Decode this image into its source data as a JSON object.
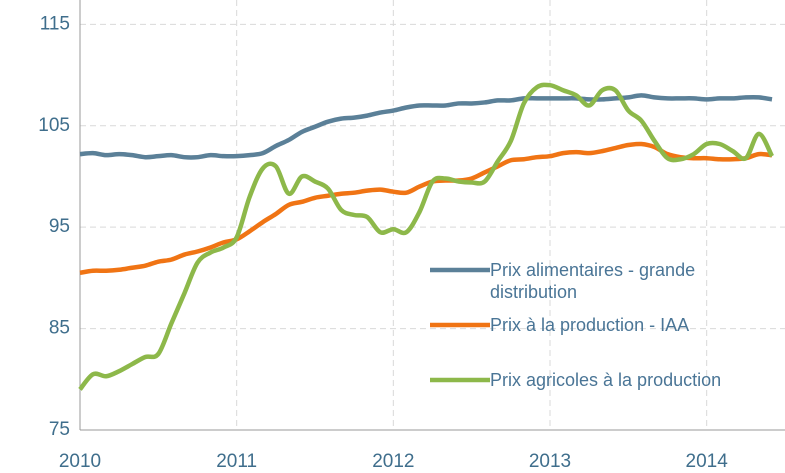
{
  "chart_data": {
    "type": "line",
    "x": [
      2010,
      2010.083,
      2010.167,
      2010.25,
      2010.333,
      2010.417,
      2010.5,
      2010.583,
      2010.667,
      2010.75,
      2010.833,
      2010.917,
      2011,
      2011.083,
      2011.167,
      2011.25,
      2011.333,
      2011.417,
      2011.5,
      2011.583,
      2011.667,
      2011.75,
      2011.833,
      2011.917,
      2012,
      2012.083,
      2012.167,
      2012.25,
      2012.333,
      2012.417,
      2012.5,
      2012.583,
      2012.667,
      2012.75,
      2012.833,
      2012.917,
      2013,
      2013.083,
      2013.167,
      2013.25,
      2013.333,
      2013.417,
      2013.5,
      2013.583,
      2013.667,
      2013.75,
      2013.833,
      2013.917,
      2014,
      2014.083,
      2014.167,
      2014.25,
      2014.333,
      2014.417
    ],
    "series": [
      {
        "name": "Prix alimentaires - grande distribution",
        "color": "#5b8098",
        "values": [
          102.2,
          102.3,
          102.1,
          102.2,
          102.1,
          101.9,
          102.0,
          102.1,
          101.9,
          101.9,
          102.1,
          102.0,
          102.0,
          102.1,
          102.3,
          103.0,
          103.6,
          104.4,
          104.9,
          105.4,
          105.7,
          105.8,
          106.0,
          106.3,
          106.5,
          106.8,
          107.0,
          107.0,
          107.0,
          107.2,
          107.2,
          107.3,
          107.5,
          107.5,
          107.7,
          107.7,
          107.7,
          107.7,
          107.7,
          107.6,
          107.6,
          107.7,
          107.8,
          108.0,
          107.8,
          107.7,
          107.7,
          107.7,
          107.6,
          107.7,
          107.7,
          107.8,
          107.8,
          107.6
        ]
      },
      {
        "name": "Prix à la production - IAA",
        "color": "#f07414",
        "values": [
          90.5,
          90.7,
          90.7,
          90.8,
          91.0,
          91.2,
          91.6,
          91.8,
          92.3,
          92.6,
          93.0,
          93.5,
          93.8,
          94.6,
          95.5,
          96.3,
          97.2,
          97.5,
          97.9,
          98.1,
          98.3,
          98.4,
          98.6,
          98.7,
          98.5,
          98.4,
          99.0,
          99.5,
          99.6,
          99.6,
          99.8,
          100.4,
          101.0,
          101.6,
          101.7,
          101.9,
          102.0,
          102.3,
          102.4,
          102.3,
          102.5,
          102.8,
          103.1,
          103.2,
          102.9,
          102.2,
          101.9,
          101.8,
          101.8,
          101.7,
          101.7,
          101.8,
          102.2,
          102.1
        ]
      },
      {
        "name": "Prix agricoles à la production",
        "color": "#8db84a",
        "values": [
          79.0,
          80.5,
          80.3,
          80.8,
          81.5,
          82.2,
          82.5,
          85.5,
          88.5,
          91.5,
          92.5,
          93.0,
          94.0,
          98.0,
          100.8,
          101.0,
          98.3,
          100.0,
          99.5,
          98.8,
          96.7,
          96.2,
          96.0,
          94.5,
          94.8,
          94.5,
          96.5,
          99.5,
          99.8,
          99.5,
          99.4,
          99.5,
          101.5,
          103.5,
          107.2,
          108.8,
          109.0,
          108.5,
          108.0,
          107.0,
          108.5,
          108.5,
          106.5,
          105.5,
          103.5,
          101.8,
          101.7,
          102.2,
          103.2,
          103.2,
          102.5,
          101.8,
          104.2,
          102.0
        ]
      }
    ],
    "xlim": [
      2010,
      2014.5
    ],
    "xticks": [
      2010,
      2011,
      2012,
      2013,
      2014
    ],
    "ylim": [
      75,
      117.4
    ],
    "yticks": [
      75,
      85,
      95,
      105,
      115
    ],
    "grid": true,
    "legend": "lower right"
  }
}
